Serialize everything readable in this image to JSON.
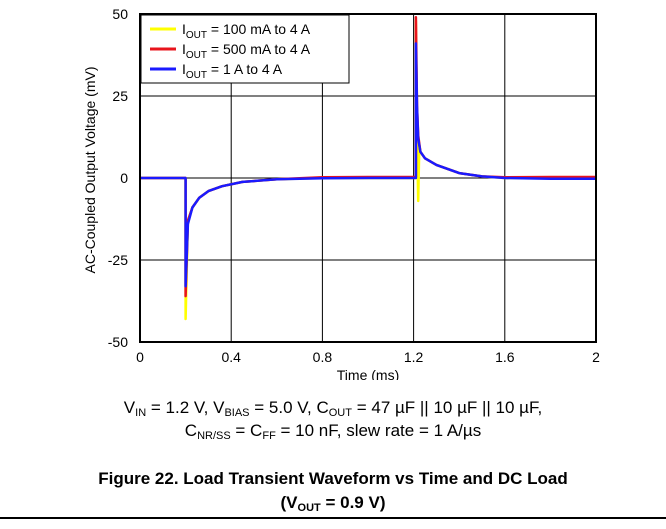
{
  "chart_data": {
    "type": "line",
    "ylabel": "AC-Coupled Output Voltage (mV)",
    "xlabel": "Time (ms)",
    "xlim": [
      0,
      2
    ],
    "ylim": [
      -50,
      50
    ],
    "x_ticks": [
      0,
      0.4,
      0.8,
      1.2,
      1.6,
      2
    ],
    "x_tick_labels": [
      "0",
      "0.4",
      "0.8",
      "1.2",
      "1.6",
      "2"
    ],
    "y_ticks": [
      50,
      25,
      0,
      -25,
      -50
    ],
    "y_tick_labels": [
      "50",
      "25",
      "0",
      "-25",
      "-50"
    ],
    "grid": true,
    "legend_position": "top-left",
    "series": [
      {
        "name_parts": [
          "I",
          "OUT",
          " = 100 mA to 4 A"
        ],
        "color": "#ffff00",
        "x": [
          0,
          0.1,
          0.199,
          0.2,
          0.2,
          0.21,
          0.23,
          0.26,
          0.3,
          0.36,
          0.45,
          0.6,
          0.8,
          1.0,
          1.2,
          1.21,
          1.21,
          1.215,
          1.22,
          1.225,
          1.23,
          1.25,
          1.3,
          1.4,
          1.5,
          1.6,
          1.8,
          2.0
        ],
        "y": [
          0,
          0,
          0,
          0,
          -43,
          -13,
          -9,
          -6,
          -4,
          -2.5,
          -1.2,
          -0.4,
          0,
          0,
          0,
          0,
          48,
          15,
          -7,
          10,
          8,
          6,
          4,
          1.5,
          0.5,
          0,
          0,
          0
        ]
      },
      {
        "name_parts": [
          "I",
          "OUT",
          " = 500 mA to 4 A"
        ],
        "color": "#e8141c",
        "x": [
          0,
          0.1,
          0.199,
          0.2,
          0.2,
          0.21,
          0.23,
          0.26,
          0.3,
          0.36,
          0.45,
          0.6,
          0.8,
          1.0,
          1.2,
          1.21,
          1.21,
          1.215,
          1.22,
          1.23,
          1.25,
          1.3,
          1.4,
          1.5,
          1.6,
          1.8,
          2.0
        ],
        "y": [
          0,
          0,
          0,
          0,
          -36,
          -13,
          -9,
          -6,
          -4,
          -2.5,
          -1.2,
          -0.4,
          0.2,
          0.3,
          0.3,
          0.3,
          49,
          22,
          13,
          8,
          6,
          4,
          1.5,
          0.5,
          0.2,
          0.3,
          0.3
        ]
      },
      {
        "name_parts": [
          "I",
          "OUT",
          " = 1 A to 4 A"
        ],
        "color": "#1a1aff",
        "x": [
          0,
          0.1,
          0.199,
          0.2,
          0.2,
          0.21,
          0.23,
          0.26,
          0.3,
          0.36,
          0.45,
          0.6,
          0.8,
          1.0,
          1.2,
          1.21,
          1.21,
          1.215,
          1.22,
          1.23,
          1.25,
          1.3,
          1.4,
          1.5,
          1.6,
          1.8,
          2.0
        ],
        "y": [
          0,
          0,
          0,
          0,
          -33,
          -14,
          -9,
          -6,
          -4,
          -2.5,
          -1.2,
          -0.4,
          -0.1,
          0,
          0,
          0,
          41,
          22,
          12,
          8,
          6,
          4,
          1.5,
          0.5,
          0,
          -0.2,
          -0.2
        ]
      }
    ]
  },
  "conditions": {
    "line1": [
      {
        "t": "V"
      },
      {
        "sub": "IN"
      },
      {
        "t": " = 1.2 V, V"
      },
      {
        "sub": "BIAS"
      },
      {
        "t": " = 5.0 V, C"
      },
      {
        "sub": "OUT"
      },
      {
        "t": " = 47 µF || 10 µF || 10 µF,"
      }
    ],
    "line2": [
      {
        "t": "C"
      },
      {
        "sub": "NR/SS"
      },
      {
        "t": " = C"
      },
      {
        "sub": "FF"
      },
      {
        "t": " = 10 nF, slew rate = 1 A/µs"
      }
    ]
  },
  "figure_caption": {
    "line1": [
      {
        "t": "Figure 22. Load Transient Waveform vs Time and DC Load"
      }
    ],
    "line2": [
      {
        "t": "(V"
      },
      {
        "sub": "OUT"
      },
      {
        "t": " = 0.9 V)"
      }
    ]
  }
}
